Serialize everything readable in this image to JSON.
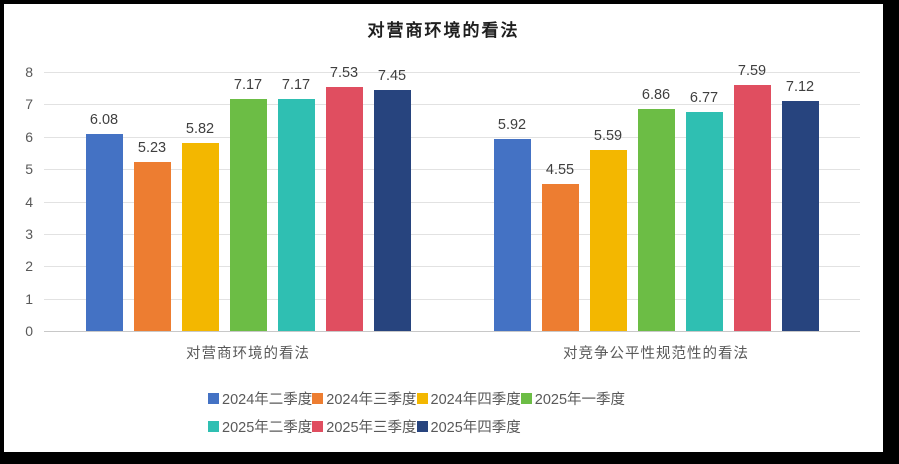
{
  "frame": {
    "border_color": "#000000",
    "background": "#ffffff"
  },
  "chart_data": {
    "type": "bar",
    "title": "对营商环境的看法",
    "categories": [
      "对营商环境的看法",
      "对竞争公平性规范性的看法"
    ],
    "series": [
      {
        "name": "2024年二季度",
        "color": "#4472C4",
        "values": [
          6.08,
          5.92
        ]
      },
      {
        "name": "2024年三季度",
        "color": "#ED7D31",
        "values": [
          5.23,
          4.55
        ]
      },
      {
        "name": "2024年四季度",
        "color": "#F3B700",
        "values": [
          5.82,
          5.59
        ]
      },
      {
        "name": "2025年一季度",
        "color": "#6CBD45",
        "values": [
          7.17,
          6.86
        ]
      },
      {
        "name": "2025年二季度",
        "color": "#2FBFB2",
        "values": [
          7.17,
          6.77
        ]
      },
      {
        "name": "2025年三季度",
        "color": "#E04E60",
        "values": [
          7.53,
          7.59
        ]
      },
      {
        "name": "2025年四季度",
        "color": "#27447E",
        "values": [
          7.45,
          7.12
        ]
      }
    ],
    "ylim": [
      0,
      8
    ],
    "yticks": [
      0,
      1,
      2,
      3,
      4,
      5,
      6,
      7,
      8
    ],
    "grid": true,
    "data_labels": true,
    "legend_position": "bottom",
    "legend_rows": [
      4,
      3
    ],
    "text_colors": {
      "tick": "#595959",
      "data_label": "#3f3f3f",
      "title": "#1f1f1f"
    }
  }
}
